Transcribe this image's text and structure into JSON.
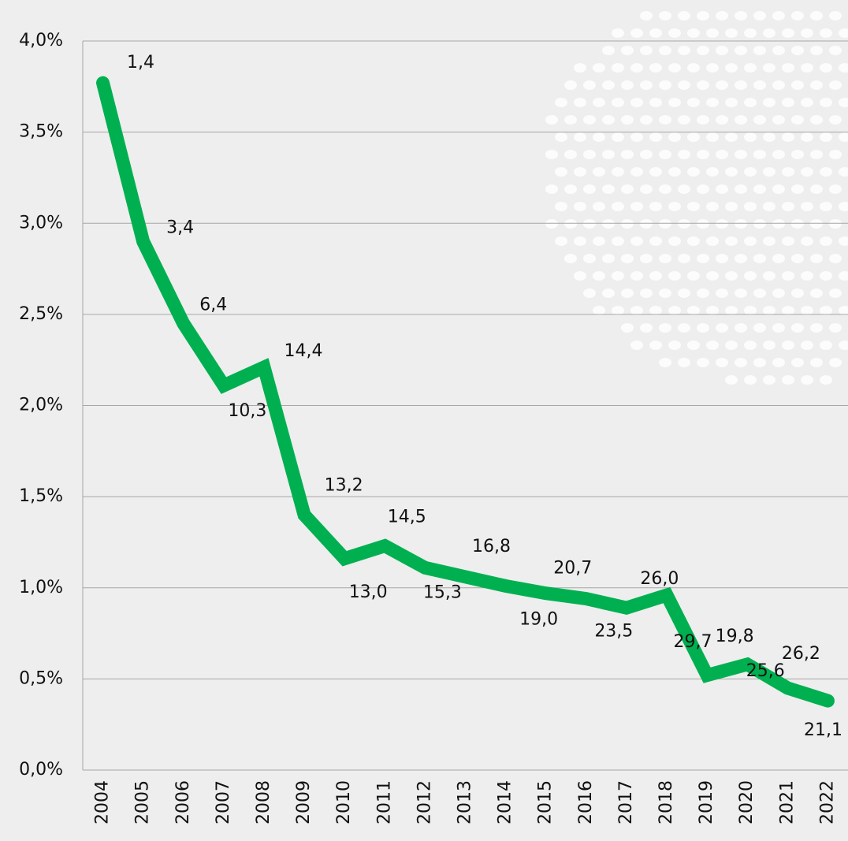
{
  "chart_data": {
    "type": "line",
    "categories": [
      "2004",
      "2005",
      "2006",
      "2007",
      "2008",
      "2009",
      "2010",
      "2011",
      "2012",
      "2013",
      "2014",
      "2015",
      "2016",
      "2017",
      "2018",
      "2019",
      "2020",
      "2021",
      "2022"
    ],
    "values": [
      3.77,
      2.9,
      2.45,
      2.11,
      2.21,
      1.4,
      1.16,
      1.23,
      1.11,
      1.06,
      1.01,
      0.97,
      0.94,
      0.89,
      0.96,
      0.52,
      0.58,
      0.45,
      0.38
    ],
    "annotations": [
      "1,4",
      "3,4",
      "6,4",
      "10,3",
      "14,4",
      "13,2",
      "13,0",
      "14,5",
      "15,3",
      "16,8",
      "19,0",
      "20,7",
      "23,5",
      "26,0",
      "29,7",
      "19,8",
      "25,6",
      "26,2",
      "21,1"
    ],
    "color": "#00b050",
    "ylim": [
      0,
      4
    ],
    "yticks": [
      {
        "value": 0,
        "label": "0,0%"
      },
      {
        "value": 0.5,
        "label": "0,5%"
      },
      {
        "value": 1,
        "label": "1,0%"
      },
      {
        "value": 1.5,
        "label": "1,5%"
      },
      {
        "value": 2,
        "label": "2,0%"
      },
      {
        "value": 2.5,
        "label": "2,5%"
      },
      {
        "value": 3,
        "label": "3,0%"
      },
      {
        "value": 3.5,
        "label": "3,5%"
      },
      {
        "value": 4,
        "label": "4,0%"
      }
    ],
    "grid": true
  }
}
